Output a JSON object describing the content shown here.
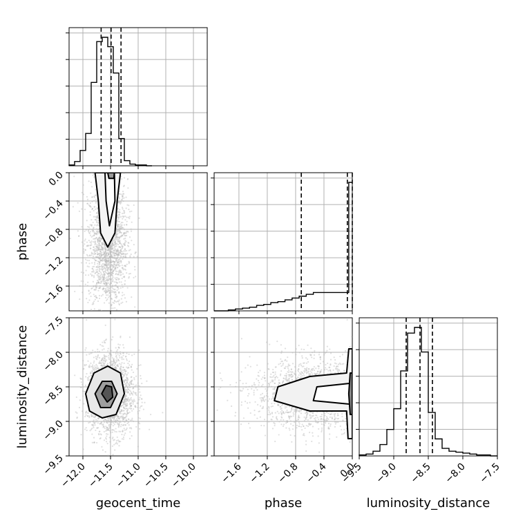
{
  "chart_data": {
    "type": "corner",
    "parameters": [
      "geocent_time",
      "phase",
      "luminosity_distance"
    ],
    "grid": true,
    "axes": {
      "geocent_time": {
        "label": "geocent_time",
        "range": [
          -12.25,
          -9.75
        ],
        "ticks": [
          -12.0,
          -11.5,
          -11.0,
          -10.5,
          -10.0
        ],
        "tick_labels": [
          "−12.0",
          "−11.5",
          "−11.0",
          "−10.5",
          "−10.0"
        ]
      },
      "phase": {
        "label": "phase",
        "range": [
          -1.95,
          0.0
        ],
        "ticks": [
          -1.6,
          -1.2,
          -0.8,
          -0.4,
          0.0
        ],
        "tick_labels": [
          "−1.6",
          "−1.2",
          "−0.8",
          "−0.4",
          "0.0"
        ]
      },
      "luminosity_distance": {
        "label": "luminosity_distance",
        "range": [
          -9.5,
          -7.5
        ],
        "ticks": [
          -9.5,
          -9.0,
          -8.5,
          -8.0,
          -7.5
        ],
        "tick_labels": [
          "−9.5",
          "−9.0",
          "−8.5",
          "−8.0",
          "−7.5"
        ]
      }
    },
    "histograms": [
      {
        "parameter": "geocent_time",
        "bin_edges": [
          -12.25,
          -12.15,
          -12.05,
          -11.95,
          -11.85,
          -11.75,
          -11.65,
          -11.55,
          -11.45,
          -11.35,
          -11.25,
          -11.15,
          -11.05,
          -10.95,
          -10.85,
          -10.75
        ],
        "counts": [
          1,
          5,
          18,
          38,
          98,
          146,
          151,
          140,
          109,
          32,
          6,
          2,
          1,
          1,
          0
        ],
        "quantiles": [
          -11.67,
          -11.49,
          -11.31
        ]
      },
      {
        "parameter": "phase",
        "bin_edges": [
          -1.95,
          -1.85,
          -1.75,
          -1.65,
          -1.55,
          -1.45,
          -1.35,
          -1.25,
          -1.15,
          -1.05,
          -0.95,
          -0.85,
          -0.75,
          -0.65,
          -0.55,
          -0.45,
          -0.35,
          -0.25,
          -0.15,
          -0.05,
          0.0
        ],
        "counts": [
          0,
          0,
          1,
          2,
          3,
          4,
          6,
          7,
          9,
          10,
          12,
          14,
          16,
          18,
          20,
          20,
          20,
          20,
          20,
          140
        ],
        "quantiles": [
          -0.72,
          -0.07,
          0.0
        ]
      },
      {
        "parameter": "luminosity_distance",
        "bin_edges": [
          -9.5,
          -9.4,
          -9.3,
          -9.2,
          -9.1,
          -9.0,
          -8.9,
          -8.8,
          -8.7,
          -8.6,
          -8.5,
          -8.4,
          -8.3,
          -8.2,
          -8.1,
          -8.0,
          -7.9,
          -7.8,
          -7.7,
          -7.6,
          -7.5
        ],
        "counts": [
          1,
          2,
          5,
          12,
          28,
          50,
          90,
          130,
          136,
          110,
          46,
          18,
          8,
          5,
          4,
          3,
          2,
          1,
          1,
          0
        ],
        "quantiles": [
          -8.82,
          -8.62,
          -8.44
        ]
      }
    ],
    "contours": [
      {
        "x": "geocent_time",
        "y": "phase",
        "levels": [
          {
            "fill": "#f4f4f4",
            "points": [
              [
                -11.78,
                0.0
              ],
              [
                -11.72,
                -0.4
              ],
              [
                -11.68,
                -0.85
              ],
              [
                -11.55,
                -1.05
              ],
              [
                -11.42,
                -0.85
              ],
              [
                -11.38,
                -0.4
              ],
              [
                -11.32,
                0.0
              ]
            ]
          },
          {
            "fill": "#ffffff",
            "points": [
              [
                -11.6,
                0.0
              ],
              [
                -11.58,
                -0.4
              ],
              [
                -11.52,
                -0.75
              ],
              [
                -11.42,
                -0.4
              ],
              [
                -11.43,
                0.0
              ]
            ]
          },
          {
            "fill": "#9a9a9a",
            "points": [
              [
                -11.55,
                0.0
              ],
              [
                -11.53,
                -0.08
              ],
              [
                -11.44,
                -0.08
              ],
              [
                -11.43,
                0.0
              ]
            ]
          }
        ]
      },
      {
        "x": "geocent_time",
        "y": "luminosity_distance",
        "levels": [
          {
            "fill": "#e8e8e8",
            "points": [
              [
                -11.95,
                -8.6
              ],
              [
                -11.8,
                -8.3
              ],
              [
                -11.55,
                -8.2
              ],
              [
                -11.32,
                -8.3
              ],
              [
                -11.25,
                -8.6
              ],
              [
                -11.4,
                -8.9
              ],
              [
                -11.65,
                -8.95
              ],
              [
                -11.88,
                -8.85
              ]
            ]
          },
          {
            "fill": "#9e9e9e",
            "points": [
              [
                -11.78,
                -8.6
              ],
              [
                -11.65,
                -8.42
              ],
              [
                -11.48,
                -8.42
              ],
              [
                -11.38,
                -8.6
              ],
              [
                -11.5,
                -8.8
              ],
              [
                -11.68,
                -8.8
              ]
            ]
          },
          {
            "fill": "#555555",
            "points": [
              [
                -11.66,
                -8.6
              ],
              [
                -11.58,
                -8.48
              ],
              [
                -11.48,
                -8.5
              ],
              [
                -11.46,
                -8.65
              ],
              [
                -11.56,
                -8.72
              ]
            ]
          }
        ]
      },
      {
        "x": "phase",
        "y": "luminosity_distance",
        "levels": [
          {
            "fill": "#f2f2f2",
            "points": [
              [
                0.0,
                -7.95
              ],
              [
                -0.05,
                -7.95
              ],
              [
                -0.08,
                -8.3
              ],
              [
                -0.6,
                -8.35
              ],
              [
                -1.05,
                -8.5
              ],
              [
                -1.1,
                -8.7
              ],
              [
                -0.6,
                -8.85
              ],
              [
                -0.08,
                -8.85
              ],
              [
                -0.06,
                -9.25
              ],
              [
                0.0,
                -9.25
              ]
            ]
          },
          {
            "fill": "#ffffff",
            "points": [
              [
                0.0,
                -8.4
              ],
              [
                -0.04,
                -8.45
              ],
              [
                -0.5,
                -8.5
              ],
              [
                -0.55,
                -8.7
              ],
              [
                -0.04,
                -8.75
              ],
              [
                0.0,
                -8.8
              ]
            ]
          },
          {
            "fill": "#888888",
            "points": [
              [
                0.0,
                -8.3
              ],
              [
                -0.03,
                -8.3
              ],
              [
                -0.05,
                -8.6
              ],
              [
                -0.03,
                -8.9
              ],
              [
                0.0,
                -8.9
              ]
            ]
          }
        ]
      }
    ],
    "sample_clouds": [
      {
        "x": "geocent_time",
        "y": "phase",
        "center": [
          -11.55,
          -1.0
        ],
        "spread": [
          0.18,
          0.45
        ],
        "count": 2000
      },
      {
        "x": "geocent_time",
        "y": "luminosity_distance",
        "center": [
          -11.5,
          -8.6
        ],
        "spread": [
          0.22,
          0.3
        ],
        "count": 2000
      },
      {
        "x": "phase",
        "y": "luminosity_distance",
        "center": [
          -0.5,
          -8.6
        ],
        "spread": [
          0.45,
          0.25
        ],
        "count": 2000
      }
    ]
  }
}
